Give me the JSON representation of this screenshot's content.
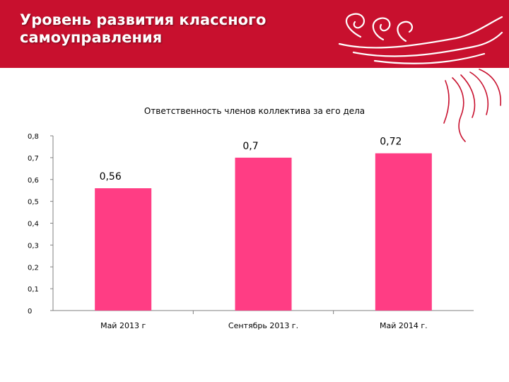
{
  "slide": {
    "title": "Уровень развития классного\nсамоуправления",
    "banner_color": "#c8102e",
    "decoration": "flourish-swirl-ornament"
  },
  "chart_data": {
    "type": "bar",
    "title": "Ответственность членов коллектива за его дела",
    "categories": [
      "Май 2013 г",
      "Сентябрь 2013 г.",
      "Май 2014 г."
    ],
    "values": [
      0.56,
      0.7,
      0.72
    ],
    "value_labels": [
      "0,56",
      "0,7",
      "0,72"
    ],
    "yticks": [
      "0",
      "0,1",
      "0,2",
      "0,3",
      "0,4",
      "0,5",
      "0,6",
      "0,7",
      "0,8"
    ],
    "ylim": [
      0,
      0.8
    ],
    "xlabel": "",
    "ylabel": "",
    "grid": false,
    "legend": false,
    "bar_color": "#ff3d84"
  }
}
